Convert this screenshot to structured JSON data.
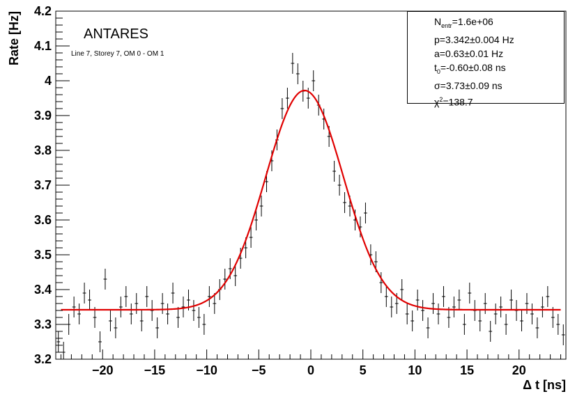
{
  "annotations": {
    "experiment": "ANTARES",
    "detector": "Line 7, Storey 7, OM 0 - OM 1"
  },
  "stats_box": {
    "n_label": "N",
    "n_sub": "entr",
    "n_value": "=1.6e+06",
    "p": "p=3.342±0.004 Hz",
    "a": "a=0.63±0.01 Hz",
    "t_label": "t",
    "t_sub": "0",
    "t_value": "=-0.60±0.08 ns",
    "sigma": "σ=3.73±0.09 ns",
    "chi_label": "χ",
    "chi_sup": "2",
    "chi_value": "=138.7"
  },
  "chart_data": {
    "type": "scatter",
    "xlabel": "Δ t [ns]",
    "ylabel": "Rate [Hz]",
    "xlim": [
      -24.5,
      24.5
    ],
    "ylim": [
      3.2,
      4.2
    ],
    "xticks": [
      -20,
      -15,
      -10,
      -5,
      0,
      5,
      10,
      15,
      20
    ],
    "xtick_labels": [
      "−20",
      "−15",
      "−10",
      "−5",
      "0",
      "5",
      "10",
      "15",
      "20"
    ],
    "yticks": [
      3.2,
      3.3,
      3.4,
      3.5,
      3.6,
      3.7,
      3.8,
      3.9,
      4.0,
      4.1,
      4.2
    ],
    "ytick_labels": [
      "3.2",
      "3.3",
      "3.4",
      "3.5",
      "3.6",
      "3.7",
      "3.8",
      "3.9",
      "4",
      "4.1",
      "4.2"
    ],
    "error_bar": 0.03,
    "series": [
      {
        "style": "points-with-error-bars",
        "color": "#000000",
        "x": [
          -24.25,
          -23.75,
          -23.25,
          -22.75,
          -22.25,
          -21.75,
          -21.25,
          -20.75,
          -20.25,
          -19.75,
          -19.25,
          -18.75,
          -18.25,
          -17.75,
          -17.25,
          -16.75,
          -16.25,
          -15.75,
          -15.25,
          -14.75,
          -14.25,
          -13.75,
          -13.25,
          -12.75,
          -12.25,
          -11.75,
          -11.25,
          -10.75,
          -10.25,
          -9.75,
          -9.25,
          -8.75,
          -8.25,
          -7.75,
          -7.25,
          -6.75,
          -6.25,
          -5.75,
          -5.25,
          -4.75,
          -4.25,
          -3.75,
          -3.25,
          -2.75,
          -2.25,
          -1.75,
          -1.25,
          -0.75,
          -0.25,
          0.25,
          0.75,
          1.25,
          1.75,
          2.25,
          2.75,
          3.25,
          3.75,
          4.25,
          4.75,
          5.25,
          5.75,
          6.25,
          6.75,
          7.25,
          7.75,
          8.25,
          8.75,
          9.25,
          9.75,
          10.25,
          10.75,
          11.25,
          11.75,
          12.25,
          12.75,
          13.25,
          13.75,
          14.25,
          14.75,
          15.25,
          15.75,
          16.25,
          16.75,
          17.25,
          17.75,
          18.25,
          18.75,
          19.25,
          19.75,
          20.25,
          20.75,
          21.25,
          21.75,
          22.25,
          22.75,
          23.25,
          23.75,
          24.25
        ],
        "y": [
          3.25,
          3.22,
          3.3,
          3.35,
          3.33,
          3.39,
          3.37,
          3.32,
          3.25,
          3.43,
          3.31,
          3.29,
          3.35,
          3.38,
          3.33,
          3.36,
          3.31,
          3.38,
          3.34,
          3.29,
          3.36,
          3.33,
          3.39,
          3.32,
          3.35,
          3.37,
          3.34,
          3.32,
          3.3,
          3.38,
          3.36,
          3.4,
          3.43,
          3.46,
          3.44,
          3.49,
          3.52,
          3.55,
          3.6,
          3.64,
          3.71,
          3.77,
          3.83,
          3.92,
          3.95,
          4.05,
          4.02,
          3.97,
          3.95,
          4.0,
          3.93,
          3.89,
          3.84,
          3.74,
          3.7,
          3.65,
          3.64,
          3.6,
          3.58,
          3.62,
          3.5,
          3.48,
          3.42,
          3.38,
          3.35,
          3.36,
          3.4,
          3.33,
          3.31,
          3.37,
          3.34,
          3.29,
          3.36,
          3.33,
          3.38,
          3.32,
          3.35,
          3.37,
          3.3,
          3.39,
          3.34,
          3.31,
          3.36,
          3.28,
          3.33,
          3.35,
          3.3,
          3.37,
          3.34,
          3.31,
          3.36,
          3.33,
          3.29,
          3.35,
          3.38,
          3.32,
          3.3,
          3.27
        ]
      },
      {
        "style": "fit-curve",
        "color": "#e00000",
        "function": "p + a*exp(-(x - t0)^2 / (2*sigma^2))",
        "params": {
          "p": 3.342,
          "a": 0.63,
          "t0": -0.6,
          "sigma": 3.73
        },
        "x_range": [
          -24,
          24
        ]
      }
    ]
  }
}
